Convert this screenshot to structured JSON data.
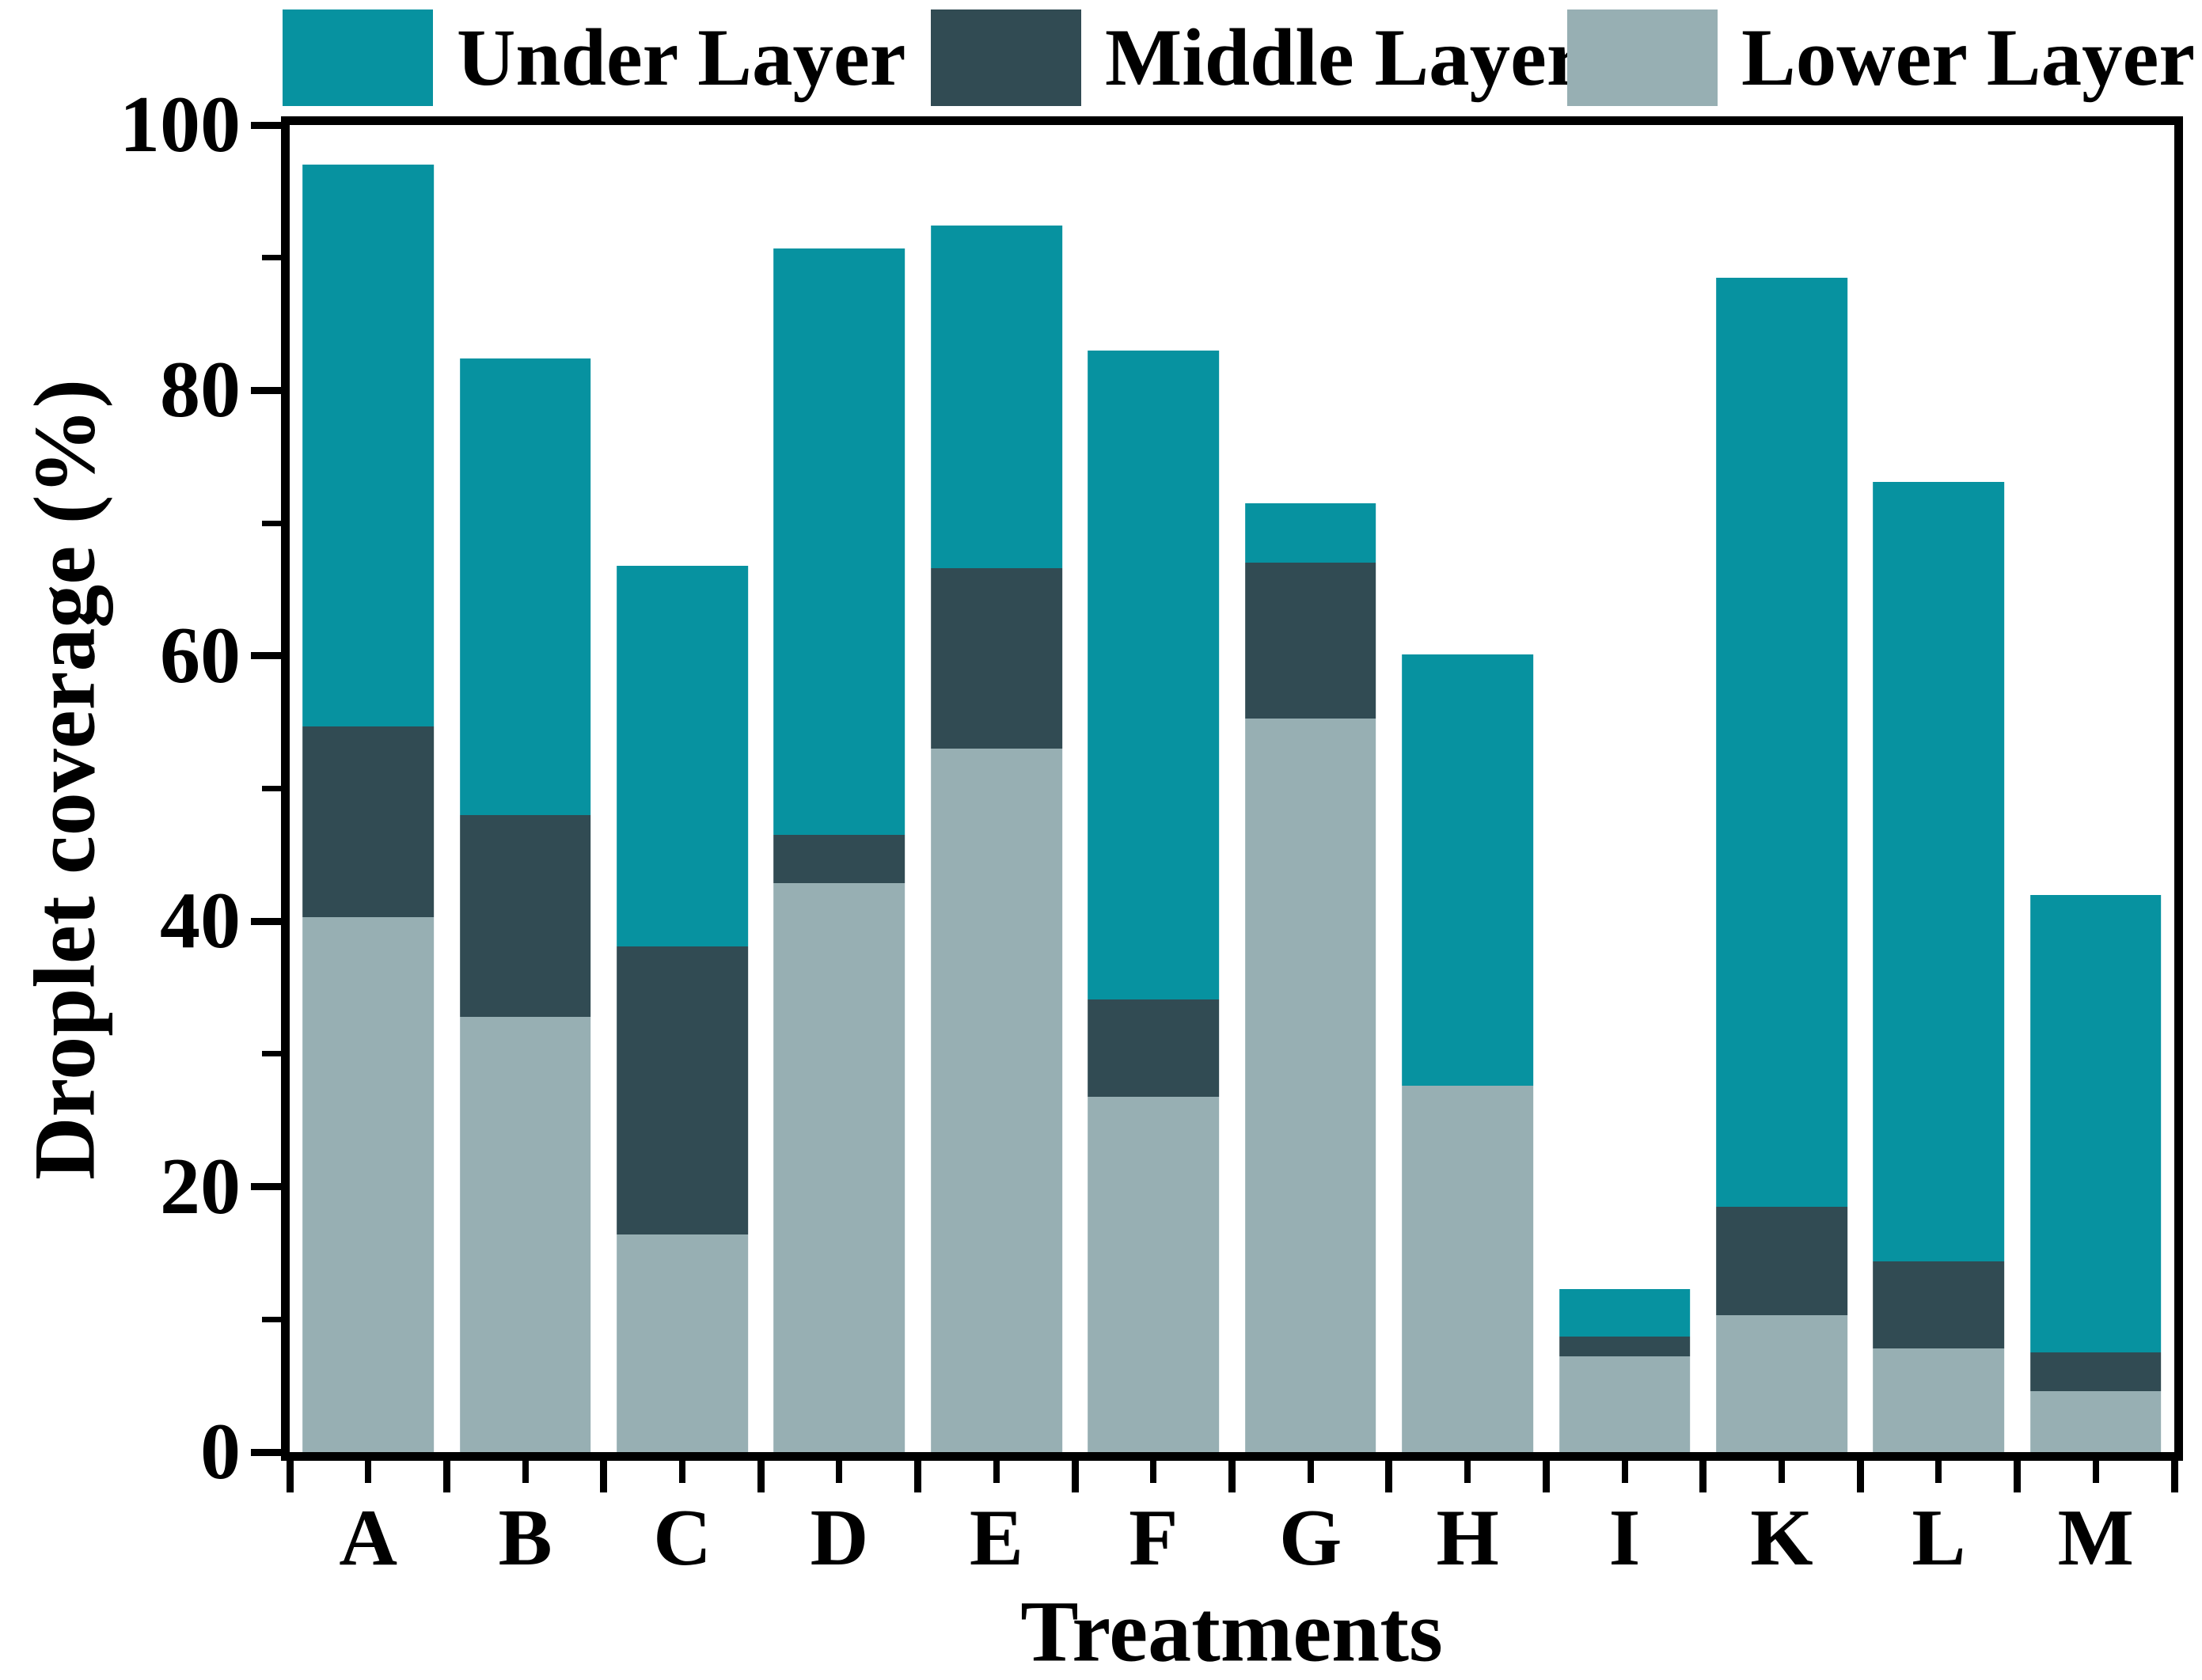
{
  "legend": {
    "items": [
      {
        "label": "Under Layer",
        "color": "#0792a0"
      },
      {
        "label": "Middle Layer",
        "color": "#314b53"
      },
      {
        "label": "Lower Layer",
        "color": "#97afb3"
      }
    ]
  },
  "chart_data": {
    "type": "bar",
    "stacked": true,
    "title": "",
    "xlabel": "Treatments",
    "ylabel": "Droplet coverage (%)",
    "ylim": [
      0,
      100
    ],
    "yticks_major": [
      0,
      20,
      40,
      60,
      80,
      100
    ],
    "yticks_minor": [
      10,
      30,
      50,
      70,
      90
    ],
    "grid": false,
    "legend_position": "top",
    "categories": [
      "A",
      "B",
      "C",
      "D",
      "E",
      "F",
      "G",
      "H",
      "I",
      "K",
      "L",
      "M"
    ],
    "series": [
      {
        "name": "Lower Layer",
        "color": "#97afb3",
        "values": [
          40.3,
          32.8,
          16.4,
          42.9,
          53.0,
          26.8,
          55.3,
          27.6,
          7.2,
          10.3,
          7.8,
          4.6
        ]
      },
      {
        "name": "Middle Layer",
        "color": "#314b53",
        "values": [
          14.4,
          15.2,
          21.7,
          3.6,
          13.6,
          7.3,
          11.7,
          0.0,
          1.5,
          8.2,
          6.6,
          2.9
        ]
      },
      {
        "name": "Under Layer",
        "color": "#0792a0",
        "values": [
          42.3,
          34.4,
          28.7,
          44.2,
          25.8,
          48.9,
          4.5,
          32.5,
          3.6,
          70.0,
          58.7,
          34.5
        ]
      }
    ],
    "totals": [
      97.0,
      82.4,
      66.8,
      90.7,
      92.4,
      83.0,
      71.5,
      60.1,
      12.3,
      88.5,
      73.1,
      42.0
    ]
  }
}
